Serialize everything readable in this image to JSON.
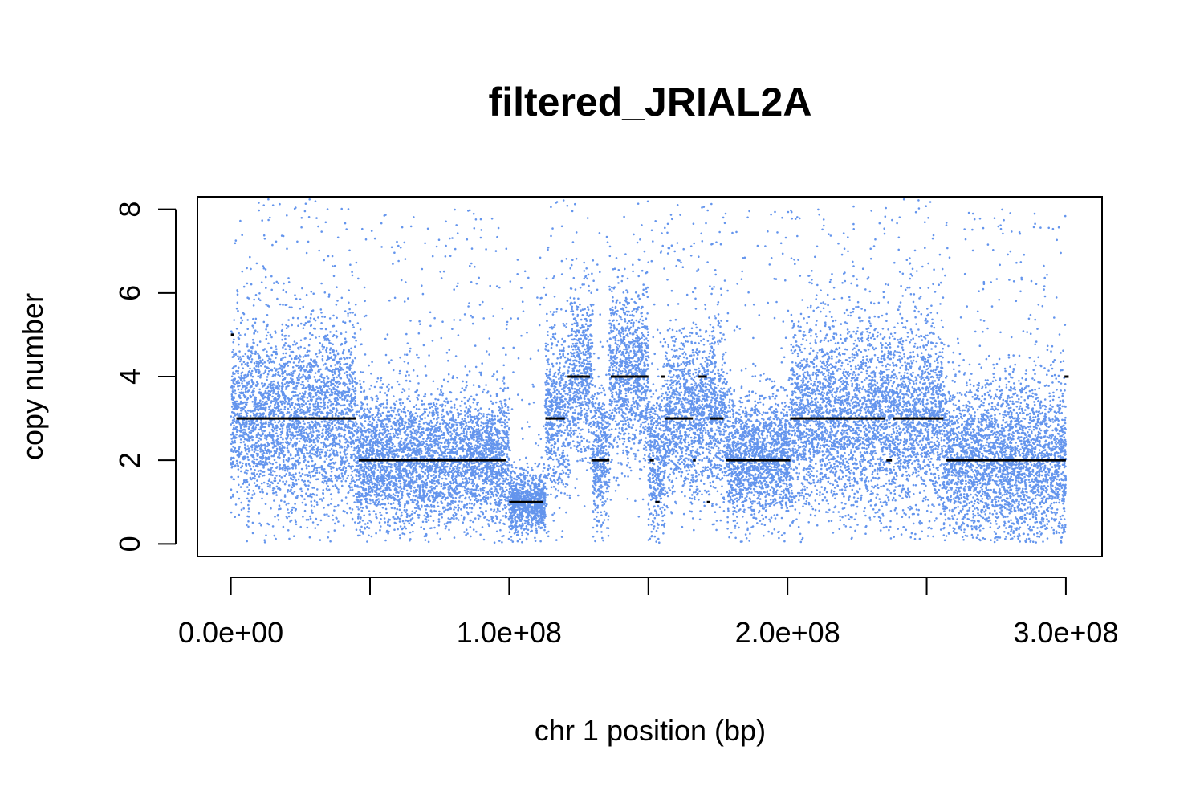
{
  "chart_data": {
    "type": "scatter",
    "title": "filtered_JRIAL2A",
    "xlabel": "chr 1 position (bp)",
    "ylabel": "copy number",
    "xlim": [
      -12000000,
      313000000
    ],
    "ylim": [
      -0.3,
      8.3
    ],
    "x_ticks": [
      0,
      50000000,
      100000000,
      150000000,
      200000000,
      250000000,
      300000000
    ],
    "x_tick_labels": [
      "0.0e+00",
      "",
      "1.0e+08",
      "",
      "2.0e+08",
      "",
      "3.0e+08"
    ],
    "y_ticks": [
      0,
      2,
      4,
      6,
      8
    ],
    "y_tick_labels": [
      "0",
      "2",
      "4",
      "6",
      "8"
    ],
    "grid": false,
    "legend": "none",
    "colors": {
      "points": "#6495ED",
      "segments": "#000000"
    },
    "point_density_profile": [
      {
        "x_start": 0,
        "x_end": 45000000,
        "level": 3,
        "spread": 1.8
      },
      {
        "x_start": 45000000,
        "x_end": 100000000,
        "level": 2,
        "spread": 1.3
      },
      {
        "x_start": 100000000,
        "x_end": 113000000,
        "level": 1,
        "spread": 0.6
      },
      {
        "x_start": 113000000,
        "x_end": 122000000,
        "level": 3,
        "spread": 1.6
      },
      {
        "x_start": 122000000,
        "x_end": 130000000,
        "level": 4,
        "spread": 1.7
      },
      {
        "x_start": 130000000,
        "x_end": 136000000,
        "level": 2,
        "spread": 1.4
      },
      {
        "x_start": 136000000,
        "x_end": 150000000,
        "level": 4,
        "spread": 1.7
      },
      {
        "x_start": 150000000,
        "x_end": 156000000,
        "level": 2,
        "spread": 1.4
      },
      {
        "x_start": 156000000,
        "x_end": 166000000,
        "level": 3,
        "spread": 1.6
      },
      {
        "x_start": 166000000,
        "x_end": 178000000,
        "level": 3,
        "spread": 1.6
      },
      {
        "x_start": 178000000,
        "x_end": 201000000,
        "level": 2,
        "spread": 1.2
      },
      {
        "x_start": 201000000,
        "x_end": 256000000,
        "level": 3,
        "spread": 1.8
      },
      {
        "x_start": 256000000,
        "x_end": 300000000,
        "level": 2,
        "spread": 1.5
      }
    ],
    "segments": [
      {
        "x_start": 0,
        "x_end": 1000000,
        "value": 5
      },
      {
        "x_start": 2000000,
        "x_end": 45000000,
        "value": 3
      },
      {
        "x_start": 46000000,
        "x_end": 99000000,
        "value": 2
      },
      {
        "x_start": 100000000,
        "x_end": 112000000,
        "value": 1
      },
      {
        "x_start": 113000000,
        "x_end": 120000000,
        "value": 3
      },
      {
        "x_start": 121000000,
        "x_end": 129000000,
        "value": 4
      },
      {
        "x_start": 129500000,
        "x_end": 136000000,
        "value": 2
      },
      {
        "x_start": 136500000,
        "x_end": 150000000,
        "value": 4
      },
      {
        "x_start": 150500000,
        "x_end": 152000000,
        "value": 2
      },
      {
        "x_start": 152500000,
        "x_end": 154000000,
        "value": 1
      },
      {
        "x_start": 154500000,
        "x_end": 156000000,
        "value": 4
      },
      {
        "x_start": 156000000,
        "x_end": 166000000,
        "value": 3
      },
      {
        "x_start": 166000000,
        "x_end": 167000000,
        "value": 2
      },
      {
        "x_start": 168000000,
        "x_end": 171000000,
        "value": 4
      },
      {
        "x_start": 171000000,
        "x_end": 172000000,
        "value": 1
      },
      {
        "x_start": 172000000,
        "x_end": 177000000,
        "value": 3
      },
      {
        "x_start": 178000000,
        "x_end": 201000000,
        "value": 2
      },
      {
        "x_start": 201000000,
        "x_end": 210000000,
        "value": 3
      },
      {
        "x_start": 210000000,
        "x_end": 235000000,
        "value": 3
      },
      {
        "x_start": 235500000,
        "x_end": 237500000,
        "value": 2
      },
      {
        "x_start": 238000000,
        "x_end": 256000000,
        "value": 3
      },
      {
        "x_start": 257000000,
        "x_end": 300000000,
        "value": 2
      },
      {
        "x_start": 299500000,
        "x_end": 301000000,
        "value": 4
      }
    ]
  }
}
